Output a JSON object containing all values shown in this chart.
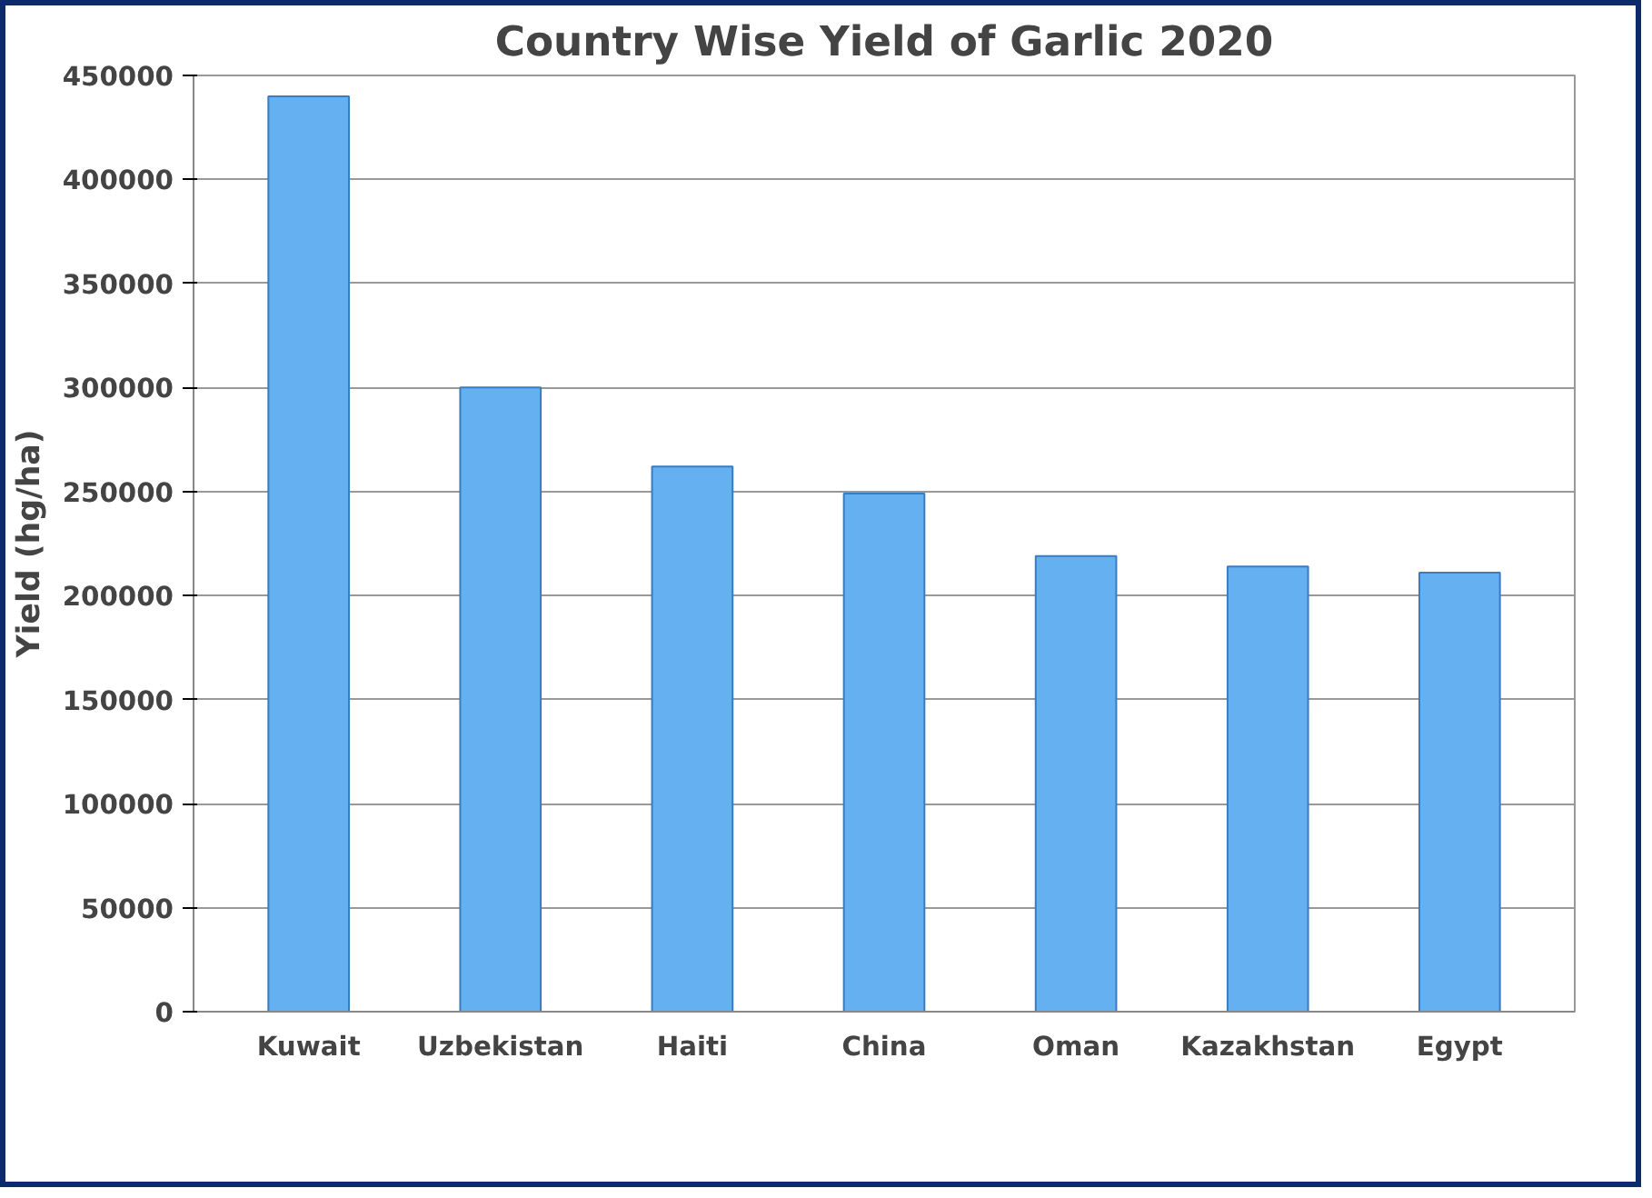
{
  "chart_data": {
    "type": "bar",
    "title": "Country Wise Yield of Garlic 2020",
    "ylabel": "Yield (hg/ha)",
    "categories": [
      "Kuwait",
      "Uzbekistan",
      "Haiti",
      "China",
      "Oman",
      "Kazakhstan",
      "Egypt"
    ],
    "values": [
      440000,
      300000,
      262000,
      249000,
      219000,
      214000,
      211000
    ],
    "color": "#64b0f0",
    "ylim": [
      0,
      450000
    ],
    "yticks": [
      0,
      50000,
      100000,
      150000,
      200000,
      250000,
      300000,
      350000,
      400000,
      450000
    ],
    "grid": "y"
  }
}
